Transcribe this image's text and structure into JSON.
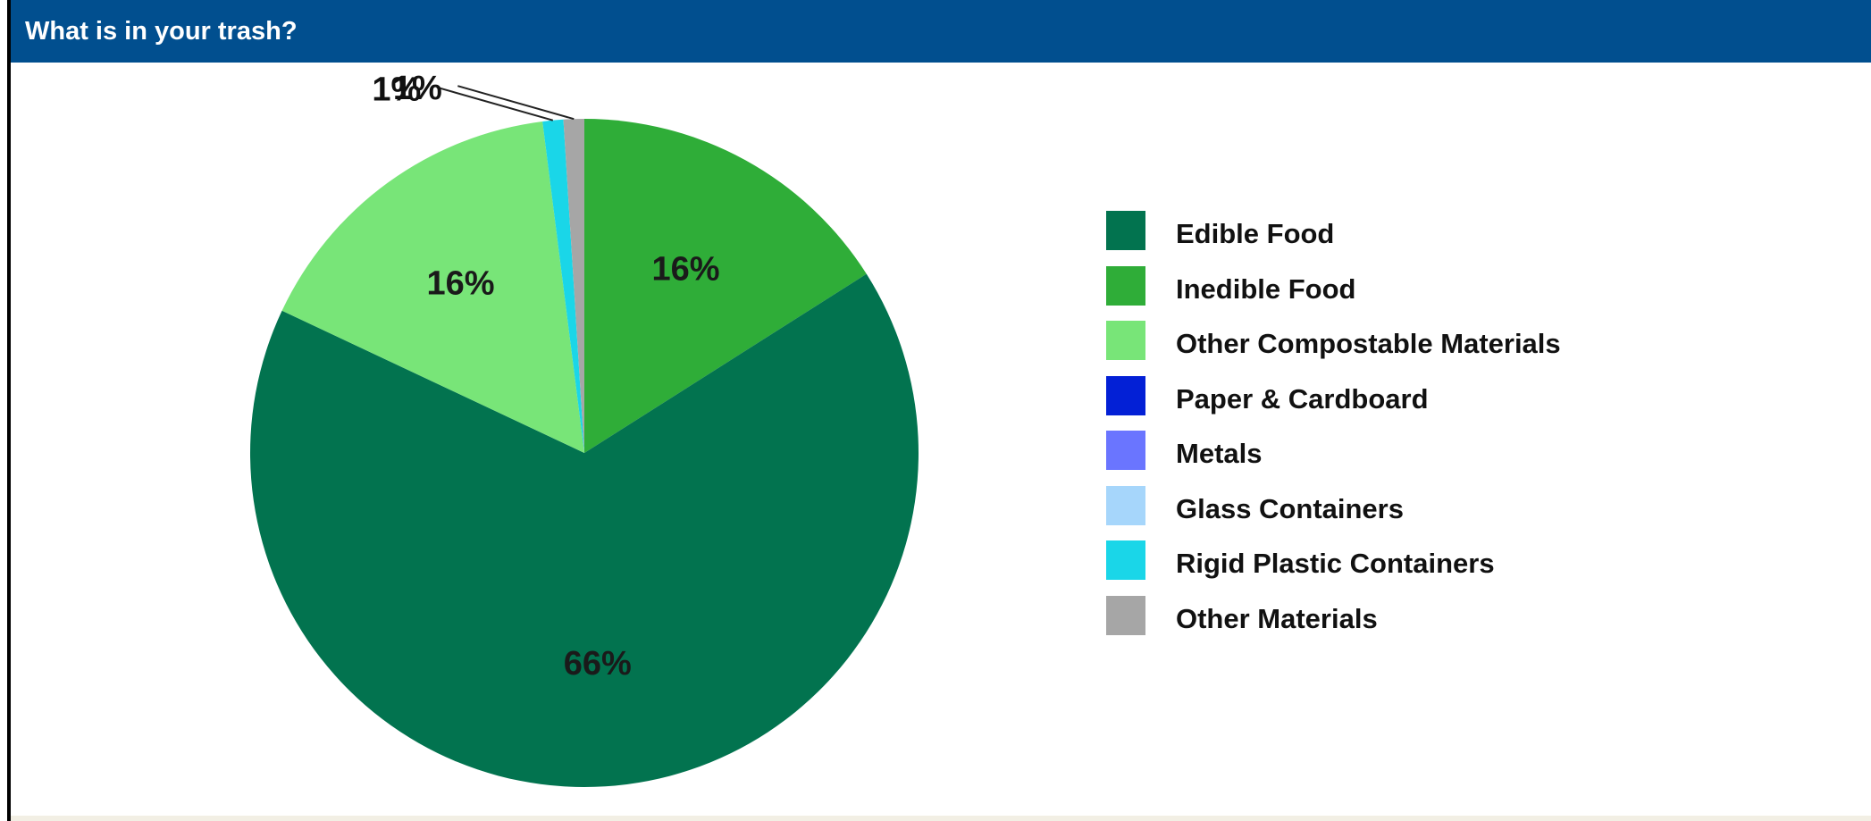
{
  "panel": {
    "title": "What is in your trash?"
  },
  "chart_data": {
    "type": "pie",
    "title": "What is in your trash?",
    "slices": [
      {
        "name": "Inedible Food",
        "value": 16,
        "label": "16%",
        "color": "#2fad38"
      },
      {
        "name": "Edible Food",
        "value": 66,
        "label": "66%",
        "color": "#02734f"
      },
      {
        "name": "Other Compostable Materials",
        "value": 16,
        "label": "16%",
        "color": "#78e578"
      },
      {
        "name": "Rigid Plastic Containers",
        "value": 1,
        "label": "1%",
        "color": "#1ad6e8"
      },
      {
        "name": "Other Materials",
        "value": 1,
        "label": "1%",
        "color": "#a6a6a6"
      }
    ],
    "legend": [
      {
        "label": "Edible Food",
        "color": "#02734f"
      },
      {
        "label": "Inedible Food",
        "color": "#2fad38"
      },
      {
        "label": "Other Compostable Materials",
        "color": "#78e578"
      },
      {
        "label": "Paper & Cardboard",
        "color": "#0320d6"
      },
      {
        "label": "Metals",
        "color": "#6a75ff"
      },
      {
        "label": "Glass Containers",
        "color": "#a6d6fb"
      },
      {
        "label": "Rigid Plastic Containers",
        "color": "#1ad6e8"
      },
      {
        "label": "Other Materials",
        "color": "#a6a6a6"
      }
    ]
  }
}
